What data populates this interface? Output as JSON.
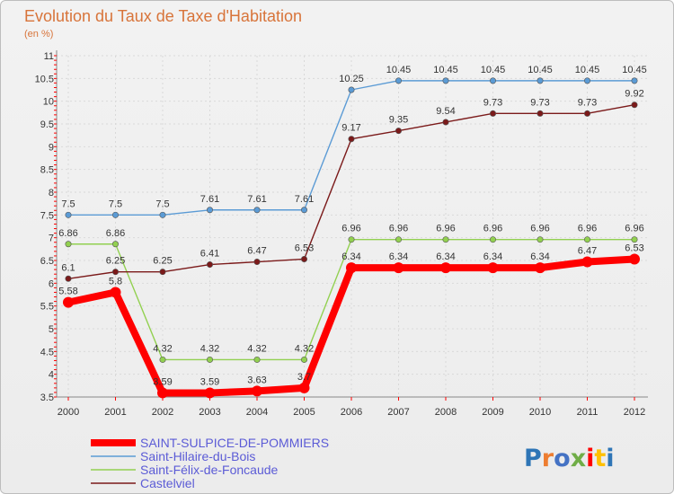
{
  "chart_data": {
    "type": "line",
    "title": "Evolution du Taux de Taxe d'Habitation",
    "subtitle": "(en %)",
    "xlabel": "",
    "ylabel": "",
    "x": [
      "2000",
      "2001",
      "2002",
      "2003",
      "2004",
      "2005",
      "2006",
      "2007",
      "2008",
      "2009",
      "2010",
      "2011",
      "2012"
    ],
    "ylim": [
      3.5,
      11
    ],
    "yticks": [
      "3.5",
      "4",
      "4.5",
      "5",
      "5.5",
      "6",
      "6.5",
      "7",
      "7.5",
      "8",
      "8.5",
      "9",
      "9.5",
      "10",
      "10.5",
      "11"
    ],
    "grid": true,
    "legend_position": "bottom-left",
    "series": [
      {
        "name": "SAINT-SULPICE-DE-POMMIERS",
        "color": "#ff0000",
        "values": [
          5.58,
          5.8,
          3.59,
          3.59,
          3.63,
          3.7,
          6.34,
          6.34,
          6.34,
          6.34,
          6.34,
          6.47,
          6.53
        ],
        "labels": [
          "5.58",
          "5.8",
          "3.59",
          "3.59",
          "3.63",
          "3.7",
          "6.34",
          "6.34",
          "6.34",
          "6.34",
          "6.34",
          "6.47",
          "6.53"
        ]
      },
      {
        "name": "Saint-Hilaire-du-Bois",
        "color": "#5b9bd5",
        "values": [
          7.5,
          7.5,
          7.5,
          7.61,
          7.61,
          7.61,
          10.25,
          10.45,
          10.45,
          10.45,
          10.45,
          10.45,
          10.45
        ],
        "labels": [
          "7.5",
          "7.5",
          "7.5",
          "7.61",
          "7.61",
          "7.61",
          "10.25",
          "10.45",
          "10.45",
          "10.45",
          "10.45",
          "10.45",
          "10.45"
        ]
      },
      {
        "name": "Saint-Félix-de-Foncaude",
        "color": "#92d050",
        "values": [
          6.86,
          6.86,
          4.32,
          4.32,
          4.32,
          4.32,
          6.96,
          6.96,
          6.96,
          6.96,
          6.96,
          6.96,
          6.96
        ],
        "labels": [
          "6.86",
          "6.86",
          "4.32",
          "4.32",
          "4.32",
          "4.32",
          "6.96",
          "6.96",
          "6.96",
          "6.96",
          "6.96",
          "6.96",
          "6.96"
        ]
      },
      {
        "name": "Castelviel",
        "color": "#7b1a1a",
        "values": [
          6.1,
          6.25,
          6.25,
          6.41,
          6.47,
          6.53,
          9.17,
          9.35,
          9.54,
          9.73,
          9.73,
          9.73,
          9.92
        ],
        "labels": [
          "6.1",
          "6.25",
          "6.25",
          "6.41",
          "6.47",
          "6.53",
          "9.17",
          "9.35",
          "9.54",
          "9.73",
          "9.73",
          "9.73",
          "9.92"
        ]
      }
    ]
  },
  "logo": {
    "text": "Proxiti",
    "letter_colors": [
      "#2e75b6",
      "#ed7d31",
      "#4472c4",
      "#70ad47",
      "#ff0000",
      "#ffc000",
      "#2e75b6"
    ]
  }
}
